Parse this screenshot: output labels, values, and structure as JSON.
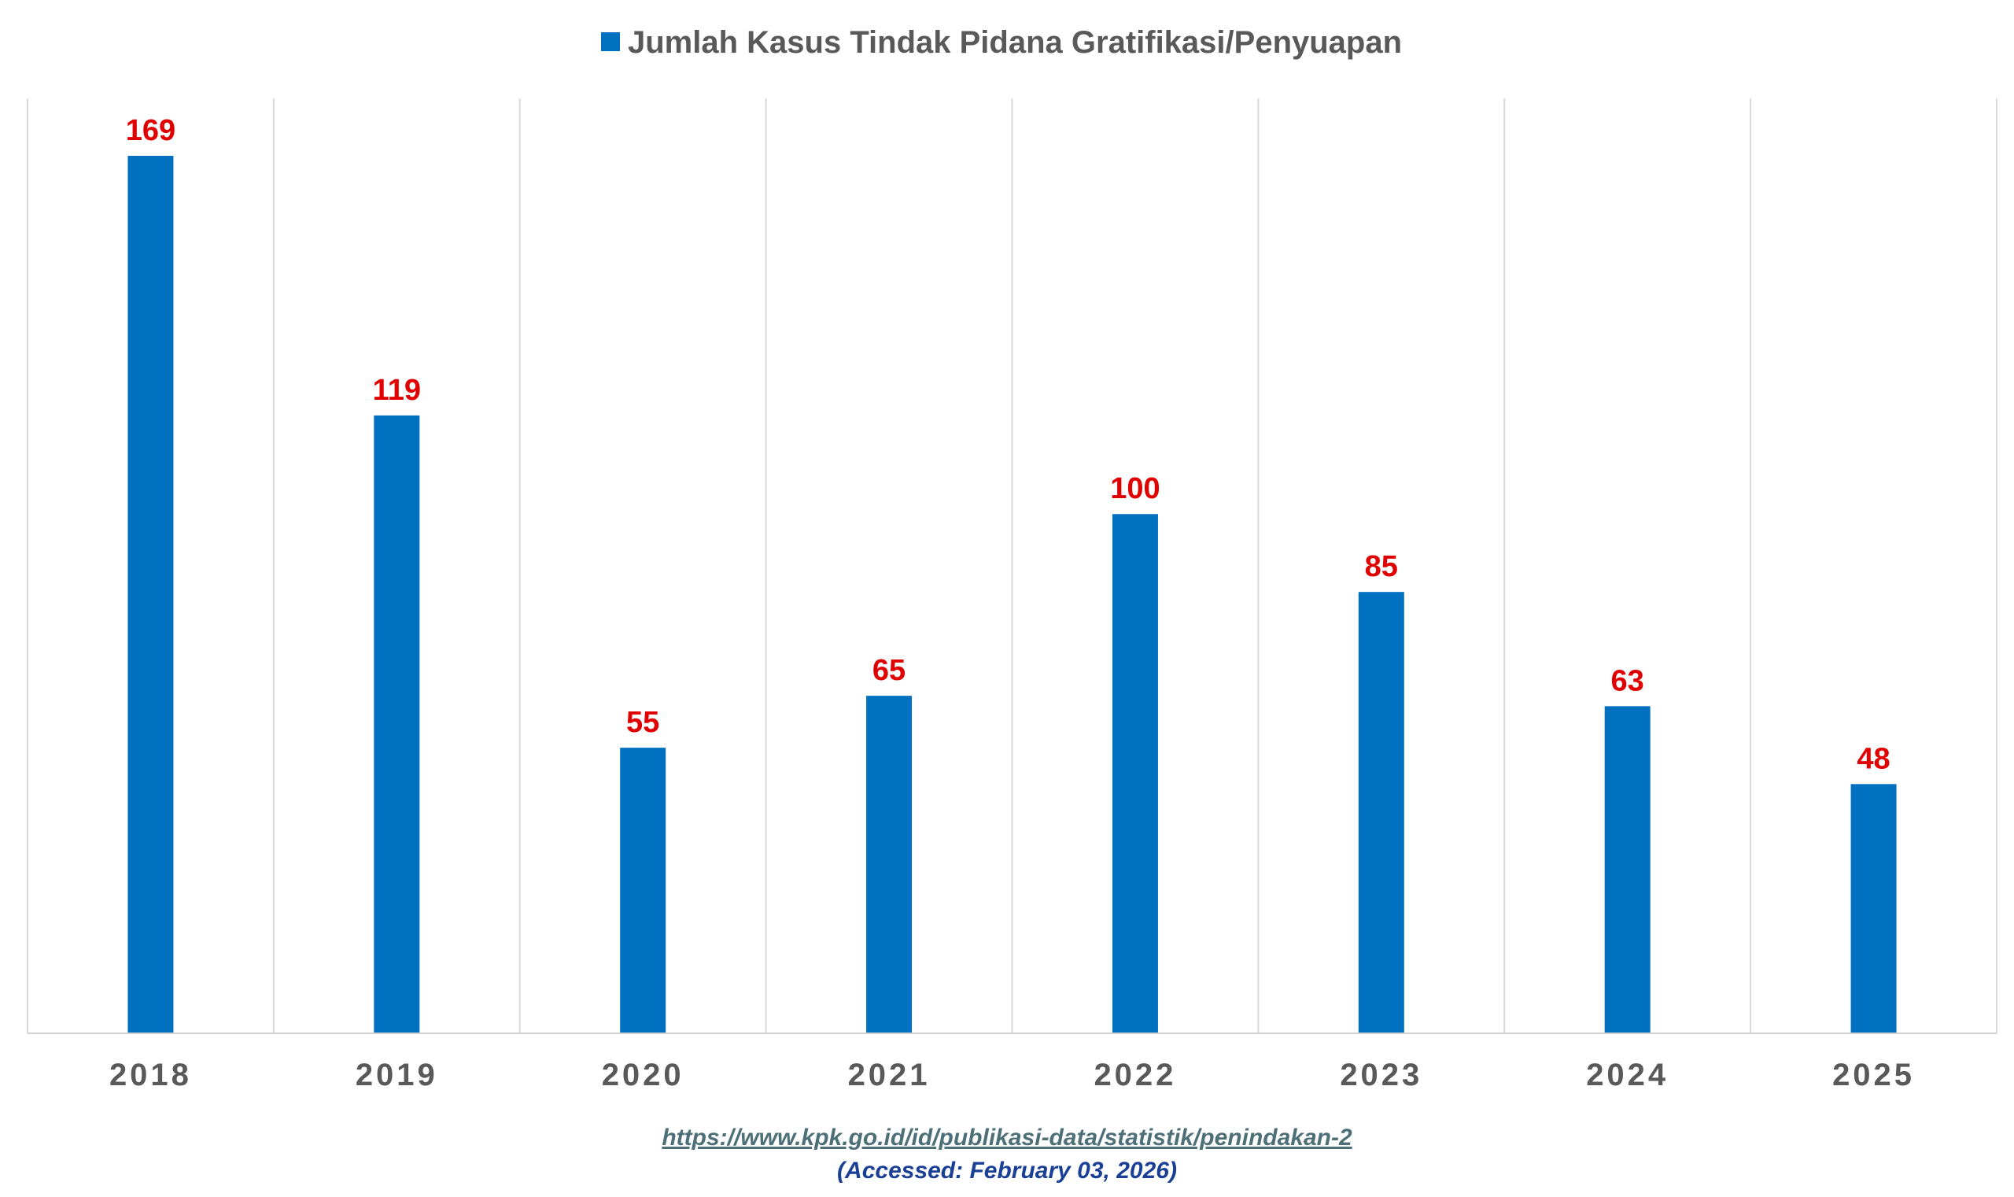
{
  "chart_data": {
    "type": "bar",
    "categories": [
      "2018",
      "2019",
      "2020",
      "2021",
      "2022",
      "2023",
      "2024",
      "2025"
    ],
    "series": [
      {
        "name": "Jumlah Kasus Tindak Pidana Gratifikasi/Penyuapan",
        "values": [
          169,
          119,
          55,
          65,
          100,
          85,
          63,
          48
        ]
      }
    ],
    "ylim": [
      0,
      180
    ],
    "grid": "vertical category separators",
    "legend": "top-center",
    "colors": {
      "bar": "#0070c0",
      "data_label": "#e00000",
      "tick_label": "#595959",
      "gridline": "#d9d9d9",
      "axis": "#d0d0d0"
    }
  },
  "source": {
    "url": "https://www.kpk.go.id/id/publikasi-data/statistik/penindakan-2",
    "accessed": "(Accessed: February 03, 2026)"
  }
}
